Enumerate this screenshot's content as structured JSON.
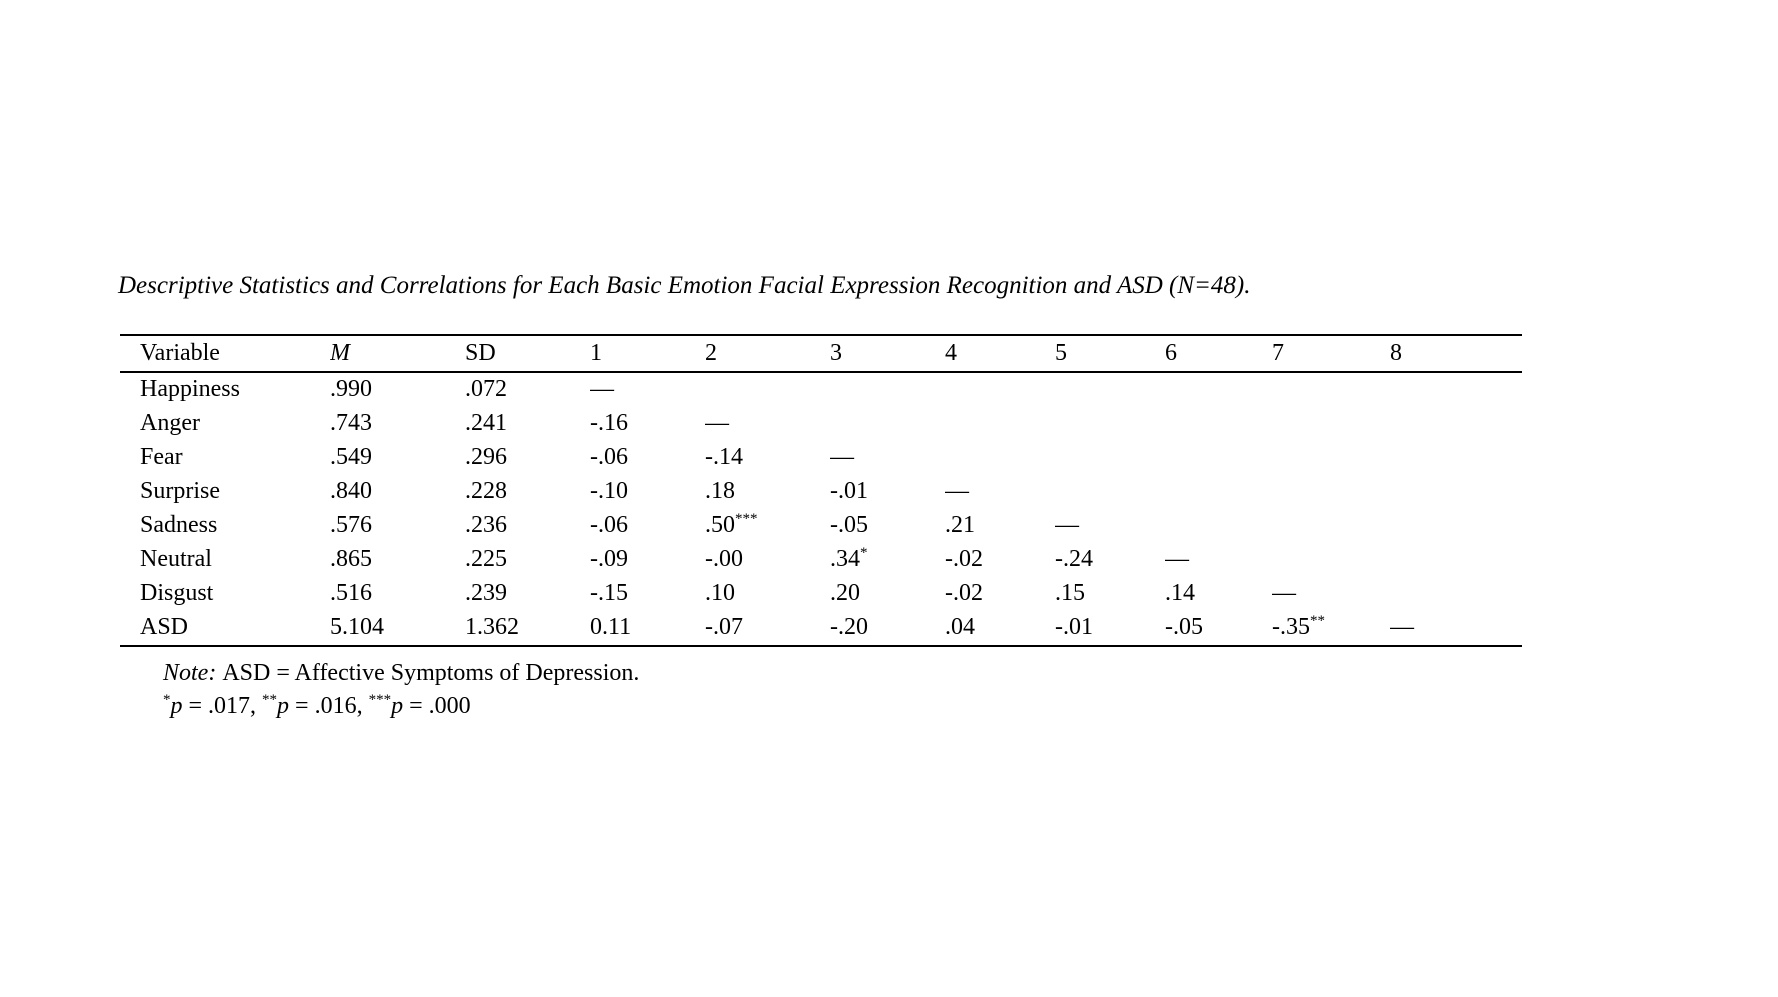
{
  "table_block": {
    "title": "Descriptive Statistics and Correlations for Each Basic Emotion Facial Expression Recognition and ASD (N=48).",
    "columns": [
      {
        "label": "Variable",
        "italic": false
      },
      {
        "label": "M",
        "italic": true
      },
      {
        "label": "SD",
        "italic": false
      },
      {
        "label": "1",
        "italic": false
      },
      {
        "label": "2",
        "italic": false
      },
      {
        "label": "3",
        "italic": false
      },
      {
        "label": "4",
        "italic": false
      },
      {
        "label": "5",
        "italic": false
      },
      {
        "label": "6",
        "italic": false
      },
      {
        "label": "7",
        "italic": false
      },
      {
        "label": "8",
        "italic": false
      }
    ],
    "rows": [
      {
        "variable": "Happiness",
        "values": [
          ".990",
          ".072",
          "—",
          "",
          "",
          "",
          "",
          "",
          "",
          ""
        ]
      },
      {
        "variable": "Anger",
        "values": [
          ".743",
          ".241",
          "-.16",
          "—",
          "",
          "",
          "",
          "",
          "",
          ""
        ]
      },
      {
        "variable": "Fear",
        "values": [
          ".549",
          ".296",
          "-.06",
          "-.14",
          "—",
          "",
          "",
          "",
          "",
          ""
        ]
      },
      {
        "variable": "Surprise",
        "values": [
          ".840",
          ".228",
          "-.10",
          ".18",
          "-.01",
          "—",
          "",
          "",
          "",
          ""
        ]
      },
      {
        "variable": "Sadness",
        "values": [
          ".576",
          ".236",
          "-.06",
          ".50***",
          "-.05",
          ".21",
          "—",
          "",
          "",
          ""
        ]
      },
      {
        "variable": "Neutral",
        "values": [
          ".865",
          ".225",
          "-.09",
          "-.00",
          ".34*",
          "-.02",
          "-.24",
          "—",
          "",
          ""
        ]
      },
      {
        "variable": "Disgust",
        "values": [
          ".516",
          ".239",
          "-.15",
          ".10",
          ".20",
          "-.02",
          ".15",
          ".14",
          "—",
          ""
        ]
      },
      {
        "variable": "ASD",
        "values": [
          "5.104",
          "1.362",
          "0.11",
          "-.07",
          "-.20",
          ".04",
          "-.01",
          "-.05",
          "-.35**",
          "—"
        ]
      }
    ]
  },
  "footnotes": {
    "note_label": "Note:",
    "note_text": "ASD = Affective Symptoms of Depression.",
    "p_symbol": "p",
    "significance": [
      {
        "stars": "*",
        "text": " = .017, "
      },
      {
        "stars": "**",
        "text": " = .016, "
      },
      {
        "stars": "***",
        "text": " = .000"
      }
    ]
  },
  "colors": {
    "text": "#000000",
    "background": "#ffffff",
    "rule": "#000000"
  }
}
